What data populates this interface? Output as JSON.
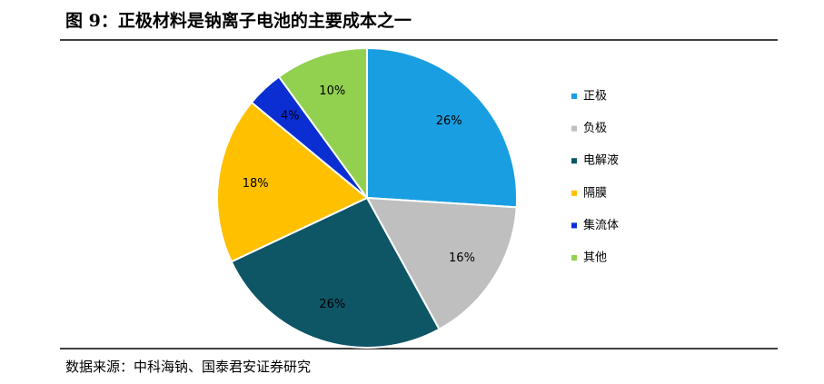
{
  "chart_data": {
    "type": "pie",
    "title": "图 9：正极材料是钠离子电池的主要成本之一",
    "source": "数据来源：中科海钠、国泰君安证券研究",
    "categories": [
      "正极",
      "负极",
      "电解液",
      "隔膜",
      "集流体",
      "其他"
    ],
    "values": [
      26,
      16,
      26,
      18,
      4,
      10
    ],
    "value_labels": [
      "26%",
      "16%",
      "26%",
      "18%",
      "4%",
      "10%"
    ],
    "colors": [
      "#1a9ee2",
      "#bfbfbf",
      "#0e5566",
      "#ffc000",
      "#0a2ed2",
      "#92d050"
    ],
    "legend": "right"
  }
}
